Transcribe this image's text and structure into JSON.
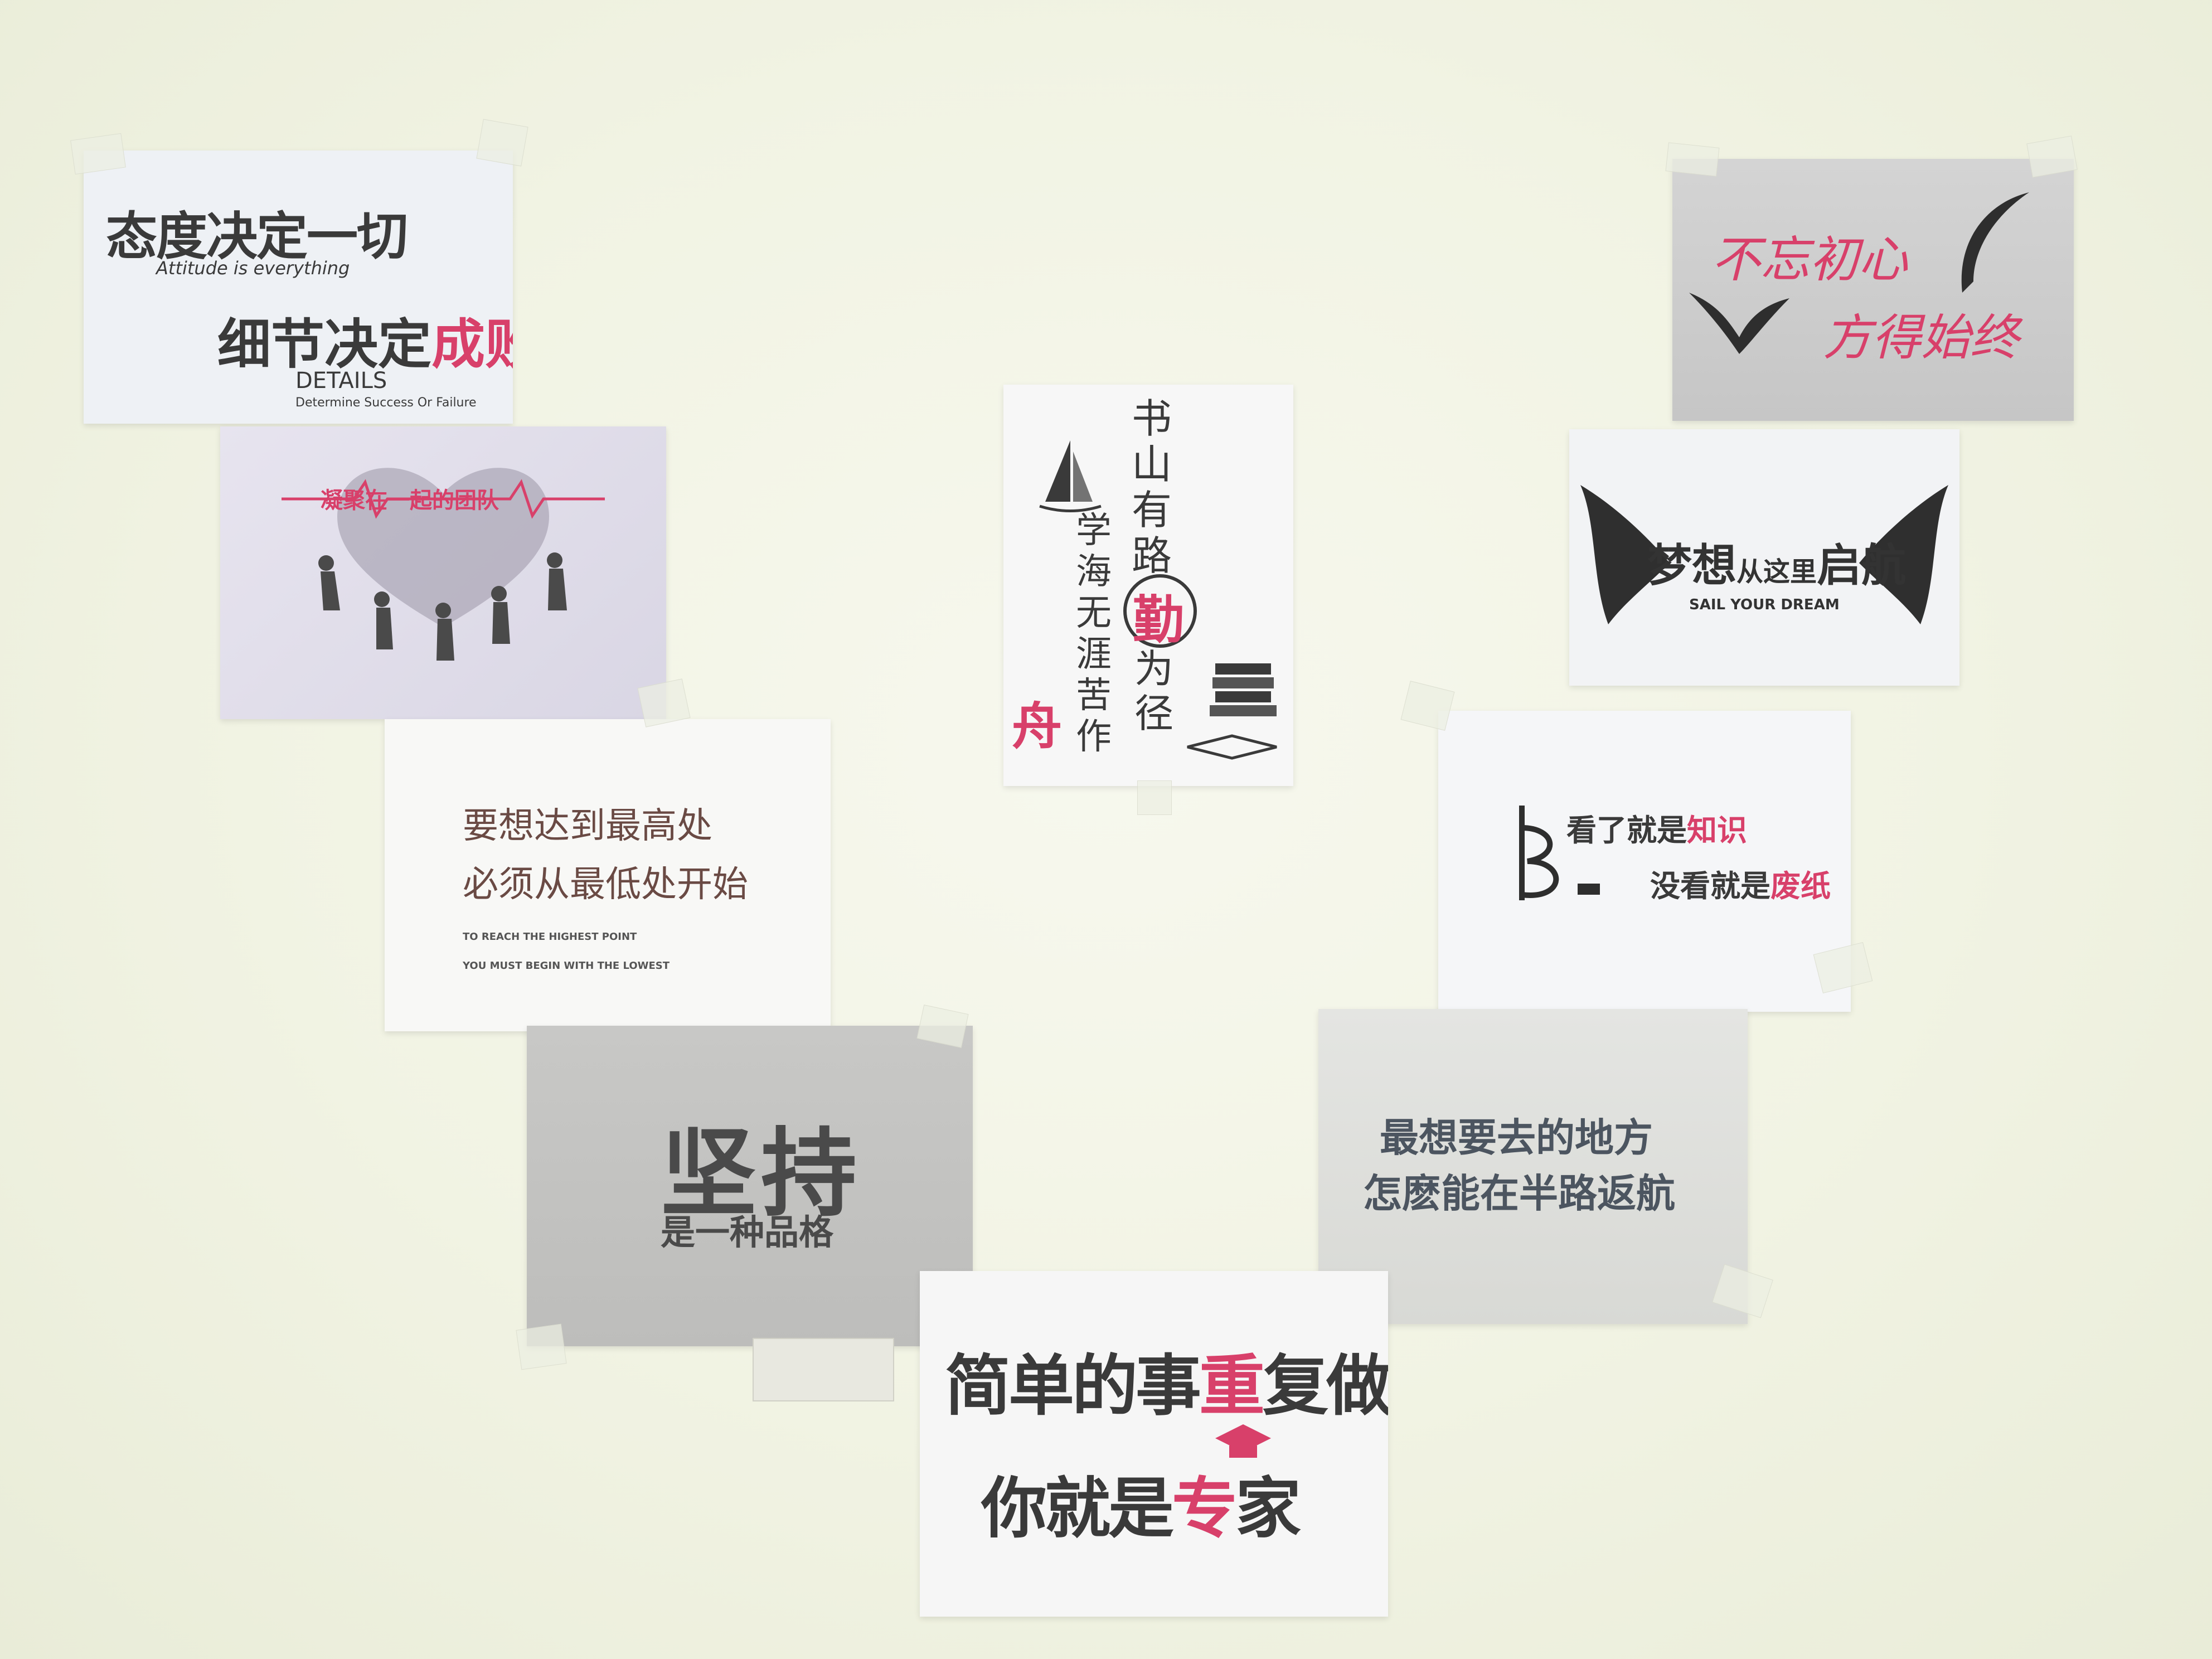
{
  "posters": {
    "attitude": {
      "line1": "态度决定一切",
      "line1_en": "Attitude is everything",
      "line2_a": "细节决定",
      "line2_b": "成败",
      "details_title": "DETAILS",
      "details_sub": "Determine Success Or Failure"
    },
    "team": {
      "heading": "凝聚在一起的团队"
    },
    "study": {
      "col1": "书山有路",
      "col_qin": "勤",
      "col_rest1": "为径",
      "col2": "学海无涯苦作",
      "zhou": "舟"
    },
    "original_aspiration": {
      "line1": "不忘初心",
      "line2": "方得始终"
    },
    "dream": {
      "main_a": "梦想",
      "main_b": "从这里",
      "main_c": "启航",
      "sub": "SAIL YOUR DREAM"
    },
    "highest": {
      "line1": "要想达到最高处",
      "line2": "必须从最低处开始",
      "en1": "TO REACH THE HIGHEST POINT",
      "en2": "YOU MUST BEGIN WITH THE LOWEST"
    },
    "book": {
      "line1_a": "看了就是",
      "line1_b": "知识",
      "line2_a": "没看就是",
      "line2_b": "废纸"
    },
    "persist": {
      "main": "坚持",
      "sub": "是一种品格"
    },
    "place": {
      "line1": "最想要去的地方",
      "line2": "怎麽能在半路返航"
    },
    "expert": {
      "line1_a": "简单的",
      "line1_b": "事",
      "line1_c": "重",
      "line1_d": "复",
      "line1_e": "做",
      "line2_a": "你就是",
      "line2_b": "专",
      "line2_c": "家"
    }
  },
  "colors": {
    "wall": "#f2f4e4",
    "accent_red": "#d8406a",
    "ink": "#3a3a3a"
  }
}
